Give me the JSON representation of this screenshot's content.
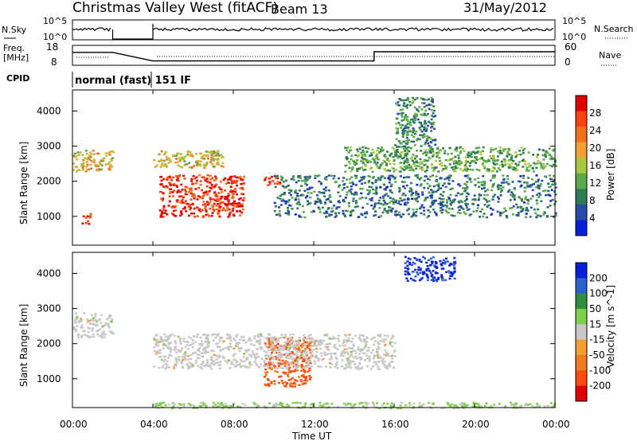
{
  "header": {
    "title": "Christmas Valley West (fitACF)",
    "beam": "Beam 13",
    "date": "31/May/2012"
  },
  "summary_panels": {
    "nsky_label": "N.Sky",
    "nsky_ticks": [
      "10^5",
      "10^0"
    ],
    "nsearch_label": "N.Search",
    "nsearch_ticks": [
      "10^5",
      "10^0"
    ],
    "freq_label": "Freq.",
    "freq_unit": "[MHz]",
    "freq_ticks": [
      "18",
      "8"
    ],
    "nave_label": "Nave",
    "nave_ticks": [
      "60",
      "0"
    ],
    "cpid_label": "CPID",
    "cpid_text": "normal (fast) 151 IF"
  },
  "x_axis": {
    "label": "Time UT",
    "ticks": [
      "00:00",
      "04:00",
      "08:00",
      "12:00",
      "16:00",
      "20:00",
      "00:00"
    ]
  },
  "power_panel": {
    "y_label": "Slant Range [km]",
    "y_ticks": [
      "1000",
      "2000",
      "3000",
      "4000"
    ],
    "colorbar_label": "Power [dB]",
    "colorbar_ticks": [
      "4",
      "8",
      "12",
      "16",
      "20",
      "24",
      "28"
    ],
    "colors": [
      "#0a1fd8",
      "#2a4aa8",
      "#2e7d57",
      "#59a94c",
      "#a6c83a",
      "#f0a030",
      "#f07020",
      "#ff4010",
      "#e00000"
    ]
  },
  "velocity_panel": {
    "y_label": "Slant Range [km]",
    "y_ticks": [
      "1000",
      "2000",
      "3000",
      "4000"
    ],
    "colorbar_label": "Velocity [m s^-1]",
    "colorbar_ticks": [
      "200",
      "100",
      "50",
      "15",
      "-15",
      "-50",
      "-100",
      "-200"
    ],
    "colors": [
      "#0a1fd8",
      "#2b5fcf",
      "#2f8f3f",
      "#7fd04a",
      "#c8c8c8",
      "#f0a030",
      "#f07a20",
      "#ff4a10",
      "#e00000"
    ]
  },
  "chart_data": {
    "type": "heatmap",
    "title": "Christmas Valley West (fitACF)",
    "xlabel": "Time UT",
    "ylabel": "Slant Range [km]",
    "x_range_hours": [
      0,
      24
    ],
    "y_range_km": [
      180,
      4600
    ],
    "data_gap_hours": [
      2.0,
      4.0
    ],
    "frequency_mhz_segments": [
      {
        "start_h": 0.0,
        "end_h": 2.0,
        "freq": 14.5
      },
      {
        "start_h": 4.0,
        "end_h": 15.0,
        "freq": 10.2
      },
      {
        "start_h": 15.0,
        "end_h": 24.0,
        "freq": 14.8
      }
    ],
    "power_regions": [
      {
        "t_start": 0.0,
        "t_end": 2.0,
        "r_min": 2300,
        "r_max": 2900,
        "power_db": 18
      },
      {
        "t_start": 0.4,
        "t_end": 0.9,
        "r_min": 800,
        "r_max": 1100,
        "power_db": 26
      },
      {
        "t_start": 4.3,
        "t_end": 8.5,
        "r_min": 1000,
        "r_max": 2200,
        "power_db": 28
      },
      {
        "t_start": 9.5,
        "t_end": 10.3,
        "r_min": 1900,
        "r_max": 2200,
        "power_db": 27
      },
      {
        "t_start": 4.0,
        "t_end": 7.5,
        "r_min": 2400,
        "r_max": 2900,
        "power_db": 18
      },
      {
        "t_start": 10.0,
        "t_end": 24.0,
        "r_min": 1000,
        "r_max": 2200,
        "power_db": 8
      },
      {
        "t_start": 13.5,
        "t_end": 24.0,
        "r_min": 2300,
        "r_max": 3000,
        "power_db": 12
      },
      {
        "t_start": 16.0,
        "t_end": 18.0,
        "r_min": 3000,
        "r_max": 4400,
        "power_db": 10
      }
    ],
    "velocity_regions": [
      {
        "t_start": 9.5,
        "t_end": 11.8,
        "r_min": 800,
        "r_max": 2200,
        "velocity": -150
      },
      {
        "t_start": 4.0,
        "t_end": 16.0,
        "r_min": 1300,
        "r_max": 2300,
        "velocity": 0
      },
      {
        "t_start": 0.0,
        "t_end": 2.0,
        "r_min": 2200,
        "r_max": 2900,
        "velocity": 0
      },
      {
        "t_start": 4.0,
        "t_end": 24.0,
        "r_min": 180,
        "r_max": 350,
        "velocity": 40
      },
      {
        "t_start": 16.5,
        "t_end": 19.0,
        "r_min": 3800,
        "r_max": 4500,
        "velocity": 200
      }
    ]
  }
}
